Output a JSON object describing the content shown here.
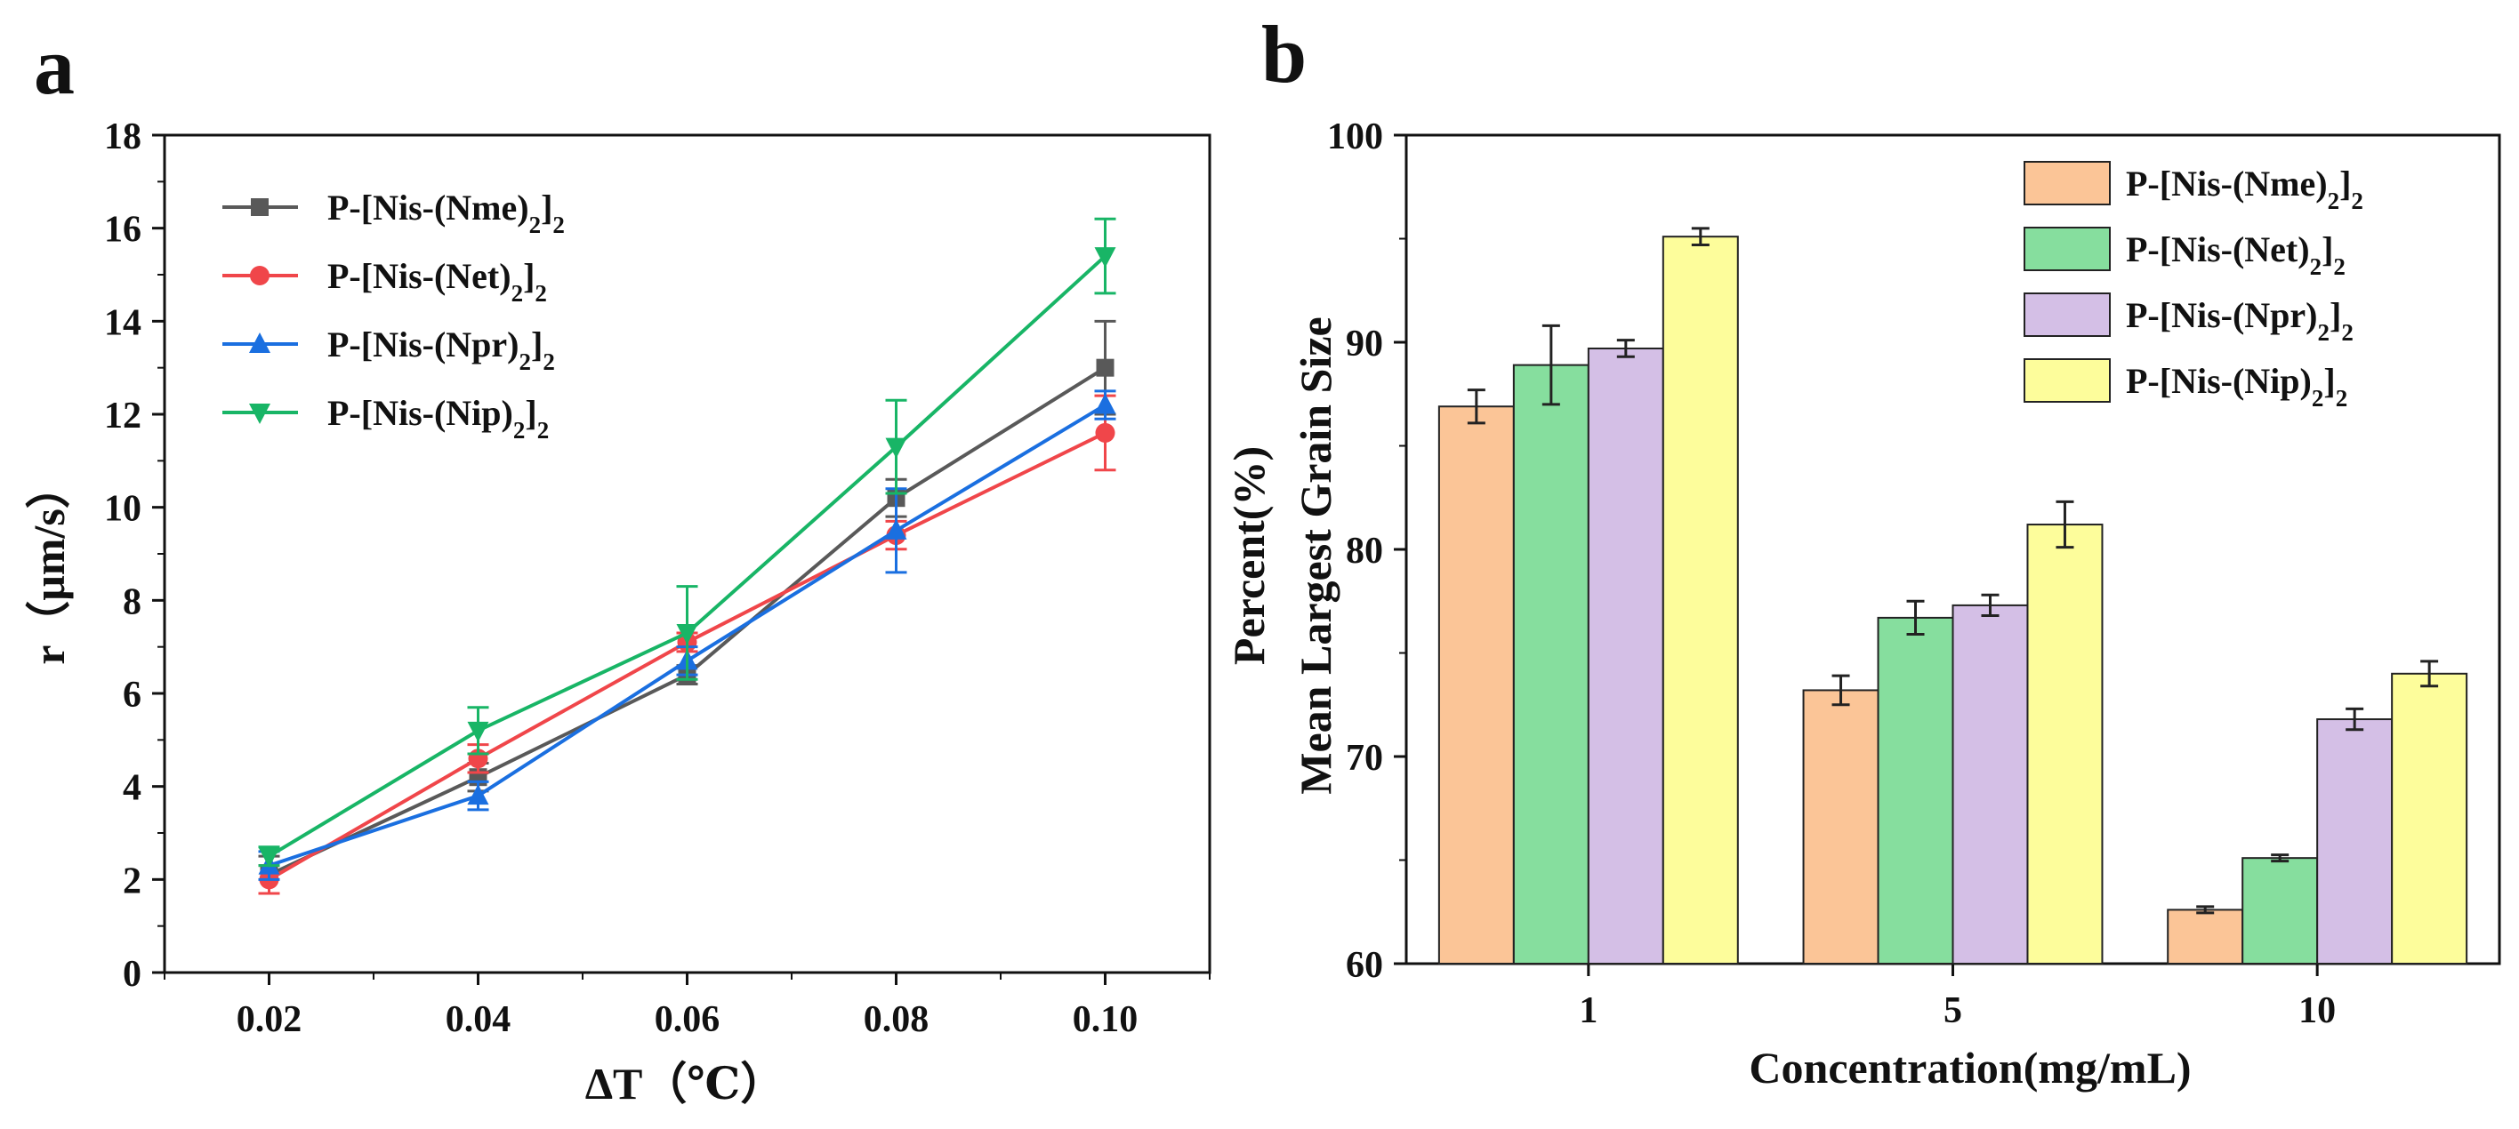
{
  "chart_data": [
    {
      "panel": "a",
      "type": "line",
      "xlabel": "ΔT（℃）",
      "ylabel": "r（μm/s）",
      "x": [
        0.02,
        0.04,
        0.06,
        0.08,
        0.1
      ],
      "x_tick_labels": [
        "0.02",
        "0.04",
        "0.06",
        "0.08",
        "0.10"
      ],
      "xlim": [
        0.01,
        0.11
      ],
      "ylim": [
        0,
        18
      ],
      "y_ticks": [
        0,
        2,
        4,
        6,
        8,
        10,
        12,
        14,
        16,
        18
      ],
      "legend_position": "top-left",
      "series": [
        {
          "name": "P-[Nis-(Nme)2]2",
          "base": "P-[Nis-(Nme)",
          "sub1": "2",
          "mid": "]",
          "sub2": "2",
          "color": "#595959",
          "marker": "square",
          "values": [
            2.1,
            4.2,
            6.4,
            10.2,
            13.0
          ],
          "errors": [
            0.4,
            0.3,
            0.2,
            0.4,
            1.0
          ]
        },
        {
          "name": "P-[Nis-(Net)2]2",
          "base": "P-[Nis-(Net)",
          "sub1": "2",
          "mid": "]",
          "sub2": "2",
          "color": "#f0464a",
          "marker": "circle",
          "values": [
            2.0,
            4.6,
            7.1,
            9.4,
            11.6
          ],
          "errors": [
            0.3,
            0.3,
            0.2,
            0.3,
            0.8
          ]
        },
        {
          "name": "P-[Nis-(Npr)2]2",
          "base": "P-[Nis-(Npr)",
          "sub1": "2",
          "mid": "]",
          "sub2": "2",
          "color": "#1a6fe0",
          "marker": "triangle-up",
          "values": [
            2.3,
            3.8,
            6.7,
            9.5,
            12.2
          ],
          "errors": [
            0.3,
            0.3,
            0.3,
            0.9,
            0.3
          ]
        },
        {
          "name": "P-[Nis-(Nip)2]2",
          "base": "P-[Nis-(Nip)",
          "sub1": "2",
          "mid": "]",
          "sub2": "2",
          "color": "#18b566",
          "marker": "triangle-down",
          "values": [
            2.5,
            5.2,
            7.3,
            11.3,
            15.4
          ],
          "errors": [
            0.2,
            0.5,
            1.0,
            1.0,
            0.8
          ]
        }
      ]
    },
    {
      "panel": "b",
      "type": "bar",
      "xlabel": "Concentration(mg/mL)",
      "ylabel_line1": "Percent(%)",
      "ylabel_line2": "Mean Largest Grain Size",
      "categories": [
        "1",
        "5",
        "10"
      ],
      "ylim": [
        60,
        100
      ],
      "y_ticks": [
        60,
        70,
        80,
        90,
        100
      ],
      "legend_position": "top-right",
      "series": [
        {
          "name": "P-[Nis-(Nme)2]2",
          "base": "P-[Nis-(Nme)",
          "sub1": "2",
          "mid": "]",
          "sub2": "2",
          "color": "#fbc597",
          "values": [
            86.9,
            73.2,
            62.6
          ],
          "errors": [
            0.8,
            0.7,
            0.15
          ]
        },
        {
          "name": "P-[Nis-(Net)2]2",
          "base": "P-[Nis-(Net)",
          "sub1": "2",
          "mid": "]",
          "sub2": "2",
          "color": "#86de9e",
          "values": [
            88.9,
            76.7,
            65.1
          ],
          "errors": [
            1.9,
            0.8,
            0.15
          ]
        },
        {
          "name": "P-[Nis-(Npr)2]2",
          "base": "P-[Nis-(Npr)",
          "sub1": "2",
          "mid": "]",
          "sub2": "2",
          "color": "#d4bfe6",
          "values": [
            89.7,
            77.3,
            71.8
          ],
          "errors": [
            0.4,
            0.5,
            0.5
          ]
        },
        {
          "name": "P-[Nis-(Nip)2]2",
          "base": "P-[Nis-(Nip)",
          "sub1": "2",
          "mid": "]",
          "sub2": "2",
          "color": "#fdfd9b",
          "values": [
            95.1,
            81.2,
            74.0
          ],
          "errors": [
            0.4,
            1.1,
            0.6
          ]
        }
      ]
    }
  ]
}
